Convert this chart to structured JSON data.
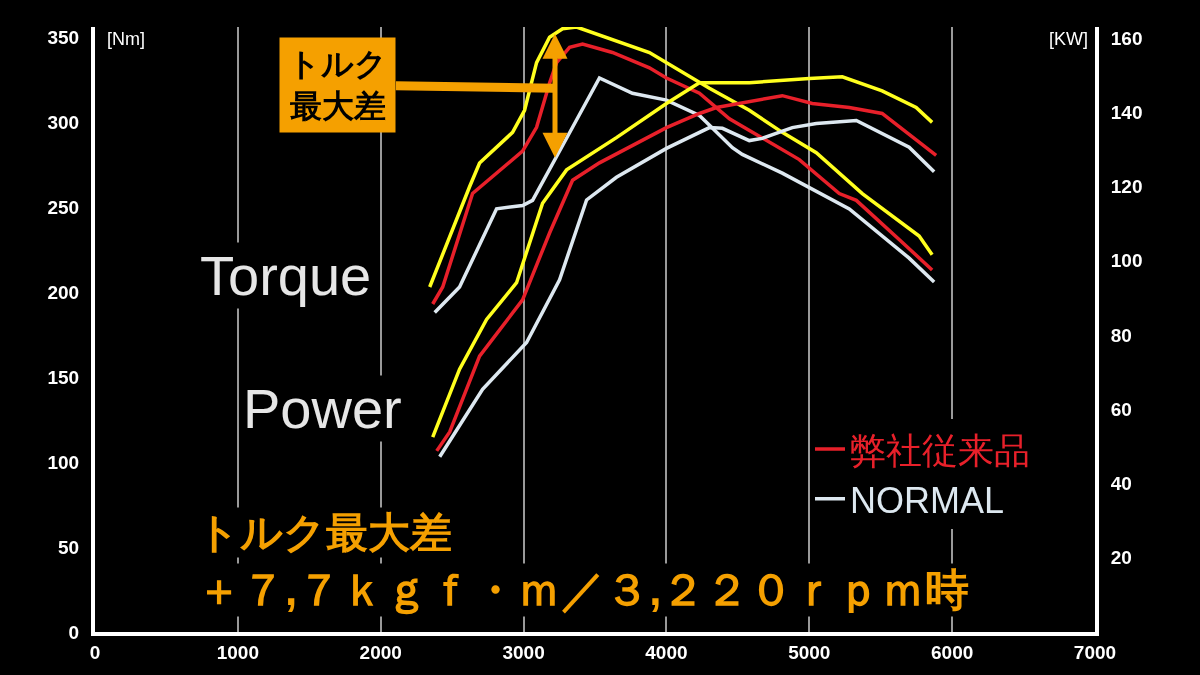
{
  "chart_data": {
    "type": "line",
    "ylabel": "[Nm]",
    "y2label": "[KW]",
    "xlim": [
      0,
      7000
    ],
    "xticks": [
      0,
      1000,
      2000,
      3000,
      4000,
      5000,
      6000,
      7000
    ],
    "ylim": [
      0,
      356
    ],
    "yticks": [
      0,
      50,
      100,
      150,
      200,
      250,
      300,
      350
    ],
    "y2lim": [
      0,
      163
    ],
    "y2ticks": [
      20,
      40,
      60,
      80,
      100,
      120,
      140,
      160
    ],
    "grid": "x",
    "legend": "bottom right",
    "marker": "none",
    "line_style": "solid",
    "series": [
      {
        "color": "#ffff1e",
        "axis": "y",
        "x": [
          2343,
          2622,
          2692,
          2923,
          3007,
          3091,
          3182,
          3273,
          3371,
          3881,
          4301,
          4580,
          4811,
          5049,
          5371,
          5769,
          5860
        ],
        "values": [
          203,
          262,
          276,
          294,
          307,
          335,
          350,
          355,
          356,
          341,
          320,
          307,
          294,
          282,
          258,
          233,
          222
        ]
      },
      {
        "name": "弊社従来品",
        "color": "#e8202a",
        "axis": "y",
        "x": [
          2364,
          2434,
          2643,
          2993,
          3091,
          3182,
          3231,
          3322,
          3413,
          3622,
          3881,
          4000,
          4231,
          4441,
          4930,
          5210,
          5329,
          5629,
          5860
        ],
        "values": [
          193,
          203,
          258,
          283,
          297,
          323,
          335,
          344,
          346,
          341,
          332,
          326,
          317,
          302,
          278,
          258,
          254,
          231,
          213
        ]
      },
      {
        "name": "NORMAL",
        "color": "#dde8f0",
        "axis": "y",
        "x": [
          2378,
          2552,
          2811,
          2993,
          3063,
          3343,
          3531,
          3762,
          4000,
          4231,
          4280,
          4462,
          4531,
          4811,
          5280,
          5699,
          5874
        ],
        "values": [
          188,
          203,
          249,
          251,
          254,
          297,
          326,
          317,
          313,
          304,
          300,
          285,
          281,
          270,
          249,
          220,
          206
        ]
      },
      {
        "color": "#ffff1e",
        "axis": "y2",
        "x": [
          2364,
          2552,
          2741,
          2951,
          3133,
          3301,
          3650,
          4000,
          4231,
          4580,
          5000,
          5231,
          5510,
          5748,
          5860
        ],
        "values": [
          52.5,
          70.8,
          84.2,
          94.1,
          115.5,
          124.5,
          133.2,
          142.4,
          148,
          148,
          149.1,
          149.6,
          145.8,
          141.3,
          137.3
        ]
      },
      {
        "color": "#e8202a",
        "axis": "y2",
        "x": [
          2392,
          2483,
          2692,
          2993,
          3182,
          3343,
          3531,
          4000,
          4231,
          4350,
          4811,
          5021,
          5280,
          5510,
          5888
        ],
        "values": [
          48.8,
          53.9,
          74.3,
          89.5,
          107.5,
          121.7,
          126.4,
          135.9,
          139.7,
          141.3,
          144.5,
          142.4,
          141.3,
          139.7,
          128.4
        ]
      },
      {
        "color": "#dde8f0",
        "axis": "y2",
        "x": [
          2413,
          2713,
          3021,
          3252,
          3441,
          3650,
          4000,
          4301,
          4392,
          4580,
          4671,
          4881,
          5049,
          5329,
          5699,
          5874
        ],
        "values": [
          47.2,
          65.4,
          78,
          94.9,
          116.4,
          122.5,
          130.3,
          135.9,
          135.7,
          132.4,
          133,
          135.9,
          137,
          137.8,
          130.6,
          124
        ]
      }
    ],
    "annotations": [
      "Torque",
      "Power",
      {
        "text": "トルク最大差",
        "x": 3220,
        "y": 320
      },
      "トルク最大差",
      "＋７,７ｋｇｆ・ｍ／３,２２０ｒｐｍ時"
    ]
  }
}
